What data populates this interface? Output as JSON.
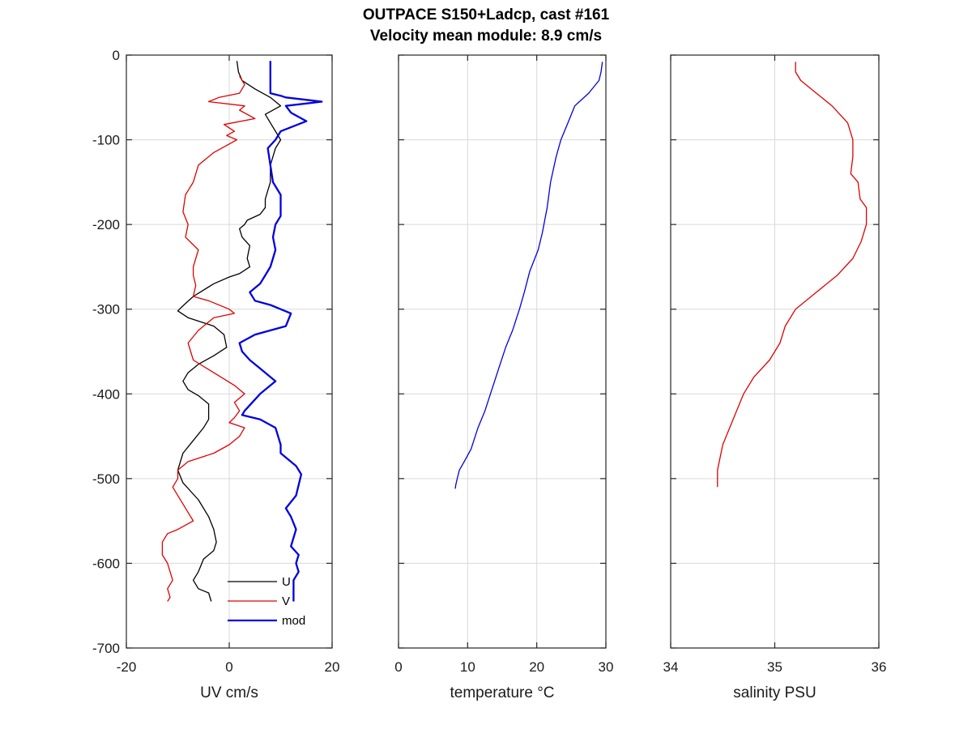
{
  "figure": {
    "title_line1": "OUTPACE S150+Ladcp, cast #161",
    "title_line2": "Velocity mean module:  8.9 cm/s"
  },
  "colors": {
    "u": "#000000",
    "v": "#e00000",
    "mod": "#0000e0",
    "temperature": "#0000e0",
    "salinity": "#e00000",
    "grid": "#d9d9d9",
    "axes": "#262626"
  },
  "chart_data": [
    {
      "type": "line",
      "xlabel": "UV cm/s",
      "ylabel": "",
      "xlim": [
        -20,
        20
      ],
      "ylim": [
        -700,
        0
      ],
      "xticks": [
        -20,
        0,
        20
      ],
      "yticks": [
        0,
        -100,
        -200,
        -300,
        -400,
        -500,
        -600,
        -700
      ],
      "show_yticklabels": true,
      "grid": true,
      "legend": {
        "placement": "bottom-right",
        "entries": [
          "U",
          "V",
          "mod"
        ]
      },
      "series": [
        {
          "name": "U",
          "color": "#000000",
          "width": 1.3,
          "x": [
            1.5,
            1.8,
            2.5,
            5,
            8,
            10,
            7,
            8,
            10,
            9,
            8,
            8,
            7.5,
            7,
            7,
            6,
            3.5,
            3,
            2,
            2.5,
            4,
            3.5,
            4,
            2,
            0,
            -3,
            -7,
            -9,
            -10,
            -8,
            -3,
            -1,
            -0.5,
            -3,
            -6,
            -8,
            -9,
            -8,
            -6,
            -4,
            -4,
            -5,
            -7,
            -9,
            -10,
            -9,
            -6,
            -4,
            -3,
            -2.5,
            -3,
            -5,
            -6,
            -7,
            -6,
            -4,
            -3.5
          ],
          "y": [
            -7,
            -20,
            -30,
            -40,
            -50,
            -60,
            -70,
            -80,
            -100,
            -110,
            -130,
            -150,
            -160,
            -170,
            -180,
            -188,
            -195,
            -200,
            -205,
            -215,
            -225,
            -240,
            -250,
            -258,
            -262,
            -270,
            -285,
            -296,
            -302,
            -310,
            -320,
            -330,
            -345,
            -355,
            -365,
            -375,
            -385,
            -395,
            -402,
            -412,
            -430,
            -440,
            -455,
            -470,
            -490,
            -505,
            -525,
            -545,
            -560,
            -575,
            -585,
            -595,
            -610,
            -620,
            -630,
            -635,
            -645
          ]
        },
        {
          "name": "V",
          "color": "#e00000",
          "width": 1.3,
          "x": [
            2,
            3,
            2,
            -2,
            -4,
            3,
            2,
            5,
            -1,
            1,
            -0.5,
            1.5,
            -3,
            -6,
            -7,
            -8,
            -8.5,
            -9,
            -8,
            -8.5,
            -6,
            -7,
            -7,
            -6.5,
            -7,
            -4,
            0,
            1,
            -3,
            -6,
            -8,
            -7,
            -3,
            1,
            3,
            1,
            2,
            1,
            0,
            3,
            2,
            0,
            -3,
            -8,
            -10,
            -10,
            -11,
            -10,
            -9,
            -8,
            -7,
            -10,
            -12,
            -13,
            -13,
            -12,
            -11.5,
            -11,
            -12,
            -11.5,
            -12
          ],
          "y": [
            -25,
            -35,
            -45,
            -50,
            -55,
            -60,
            -65,
            -75,
            -82,
            -90,
            -95,
            -100,
            -115,
            -130,
            -150,
            -160,
            -165,
            -185,
            -200,
            -215,
            -230,
            -250,
            -260,
            -272,
            -285,
            -290,
            -300,
            -305,
            -310,
            -325,
            -340,
            -360,
            -375,
            -390,
            -400,
            -410,
            -420,
            -428,
            -434,
            -440,
            -450,
            -460,
            -470,
            -480,
            -490,
            -500,
            -510,
            -520,
            -530,
            -540,
            -550,
            -560,
            -565,
            -575,
            -590,
            -600,
            -610,
            -620,
            -630,
            -640,
            -645
          ]
        },
        {
          "name": "mod",
          "color": "#0000e0",
          "width": 2.3,
          "x": [
            8,
            8,
            8,
            8,
            10,
            11,
            18,
            11,
            12,
            15,
            10,
            9,
            7.5,
            8,
            8.5,
            10,
            10,
            9,
            8.5,
            9,
            8.5,
            8,
            7,
            6,
            4,
            5,
            8,
            12,
            11,
            5,
            2,
            2.5,
            4,
            6,
            9,
            6,
            3,
            2.5,
            6,
            9,
            10,
            10,
            13,
            14,
            13,
            11,
            12,
            13,
            12,
            13.5,
            13,
            13.5,
            12.5,
            12.5
          ],
          "y": [
            -7,
            -20,
            -30,
            -45,
            -48,
            -50,
            -55,
            -60,
            -68,
            -78,
            -90,
            -100,
            -110,
            -130,
            -150,
            -165,
            -190,
            -200,
            -215,
            -230,
            -240,
            -250,
            -260,
            -270,
            -280,
            -290,
            -295,
            -305,
            -320,
            -330,
            -340,
            -350,
            -360,
            -370,
            -385,
            -400,
            -420,
            -425,
            -430,
            -440,
            -460,
            -470,
            -485,
            -495,
            -520,
            -535,
            -545,
            -560,
            -580,
            -590,
            -600,
            -610,
            -620,
            -645
          ]
        }
      ]
    },
    {
      "type": "line",
      "xlabel": "temperature °C",
      "ylabel": "",
      "xlim": [
        0,
        30
      ],
      "ylim": [
        -700,
        0
      ],
      "xticks": [
        0,
        10,
        20,
        30
      ],
      "yticks": [
        0,
        -100,
        -200,
        -300,
        -400,
        -500,
        -600,
        -700
      ],
      "show_yticklabels": false,
      "grid": true,
      "series": [
        {
          "name": "",
          "color": "#0000e0",
          "width": 1.3,
          "x": [
            29.5,
            29.3,
            29,
            27.5,
            25.5,
            24.5,
            23.5,
            22.8,
            22,
            21.5,
            20.8,
            20.2,
            19,
            18.2,
            17.5,
            16.5,
            15.5,
            14.5,
            13.5,
            12.5,
            11.5,
            10.5,
            9.5,
            8.8,
            8.5,
            8.3,
            8.2
          ],
          "y": [
            -8,
            -20,
            -30,
            -45,
            -60,
            -80,
            -100,
            -120,
            -150,
            -180,
            -210,
            -230,
            -255,
            -280,
            -300,
            -325,
            -345,
            -370,
            -395,
            -420,
            -440,
            -465,
            -480,
            -490,
            -500,
            -507,
            -512
          ]
        }
      ]
    },
    {
      "type": "line",
      "xlabel": "salinity PSU",
      "ylabel": "",
      "xlim": [
        34,
        36
      ],
      "ylim": [
        -700,
        0
      ],
      "xticks": [
        34,
        35,
        36
      ],
      "yticks": [
        0,
        -100,
        -200,
        -300,
        -400,
        -500,
        -600,
        -700
      ],
      "show_yticklabels": false,
      "grid": true,
      "series": [
        {
          "name": "",
          "color": "#e00000",
          "width": 1.3,
          "x": [
            35.2,
            35.2,
            35.25,
            35.4,
            35.55,
            35.7,
            35.75,
            35.75,
            35.73,
            35.8,
            35.82,
            35.88,
            35.88,
            35.83,
            35.75,
            35.6,
            35.4,
            35.2,
            35.1,
            35.05,
            34.95,
            34.8,
            34.7,
            34.6,
            34.5,
            34.45,
            34.45
          ],
          "y": [
            -8,
            -20,
            -30,
            -45,
            -60,
            -80,
            -100,
            -120,
            -140,
            -150,
            -170,
            -180,
            -200,
            -220,
            -240,
            -260,
            -280,
            -300,
            -320,
            -340,
            -360,
            -380,
            -400,
            -430,
            -460,
            -490,
            -510
          ]
        }
      ]
    }
  ]
}
